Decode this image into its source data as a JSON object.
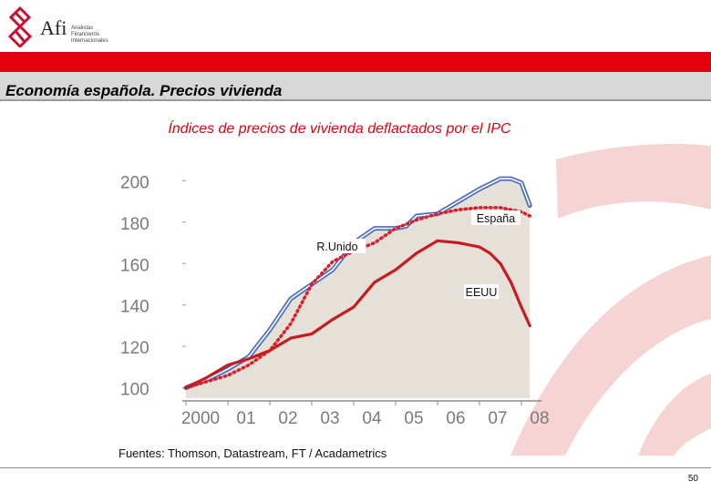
{
  "logo": {
    "brand": "Afi",
    "sub_line1": "Analistas",
    "sub_line2": "Financieros",
    "sub_line3": "Internacionales"
  },
  "slide": {
    "title": "Economía española. Precios vivienda",
    "source": "Fuentes: Thomson, Datastream, FT / Acadametrics",
    "page_number": "50"
  },
  "colors": {
    "brand_red": "#e3000f",
    "espana": "#4a6bc0",
    "runido": "#d9202a",
    "eeuu": "#c81a1f",
    "area_fill": "#e6e1d8"
  },
  "chart_data": {
    "type": "line",
    "title": "Índices de precios de vivienda deflactados por el IPC",
    "ylim": [
      95,
      205
    ],
    "xlim": [
      2000,
      2008.3
    ],
    "y_ticks": [
      "100",
      "120",
      "140",
      "160",
      "180",
      "200"
    ],
    "x_tick_labels": [
      "2000",
      "01",
      "02",
      "03",
      "04",
      "05",
      "06",
      "07",
      "08"
    ],
    "series": [
      {
        "name": "España",
        "x": [
          2000,
          2000.5,
          2001,
          2001.5,
          2002,
          2002.5,
          2003,
          2003.5,
          2004,
          2004.5,
          2005,
          2005.25,
          2005.5,
          2006,
          2006.5,
          2007,
          2007.5,
          2007.75,
          2008,
          2008.2
        ],
        "values": [
          100,
          104,
          109,
          115,
          128,
          143,
          150,
          157,
          170,
          177,
          177,
          178,
          183,
          184,
          190,
          196,
          201,
          201,
          199,
          188
        ]
      },
      {
        "name": "R.Unido",
        "x": [
          2000,
          2000.5,
          2001,
          2001.5,
          2002,
          2002.5,
          2003,
          2003.5,
          2004,
          2004.5,
          2005,
          2005.5,
          2006,
          2006.5,
          2007,
          2007.5,
          2008,
          2008.2
        ],
        "values": [
          100,
          103,
          106,
          111,
          118,
          131,
          150,
          161,
          166,
          170,
          177,
          181,
          184,
          186,
          187,
          187,
          185,
          183
        ]
      },
      {
        "name": "EEUU",
        "x": [
          2000,
          2000.5,
          2001,
          2001.5,
          2002,
          2002.5,
          2003,
          2003.5,
          2004,
          2004.5,
          2005,
          2005.5,
          2006,
          2006.5,
          2007,
          2007.25,
          2007.5,
          2007.75,
          2008,
          2008.2
        ],
        "values": [
          100,
          105,
          111,
          114,
          118,
          124,
          126,
          133,
          139,
          151,
          157,
          165,
          171,
          170,
          168,
          165,
          160,
          151,
          139,
          130
        ]
      }
    ],
    "labels": {
      "espana": "España",
      "runido": "R.Unido",
      "eeuu": "EEUU"
    }
  }
}
